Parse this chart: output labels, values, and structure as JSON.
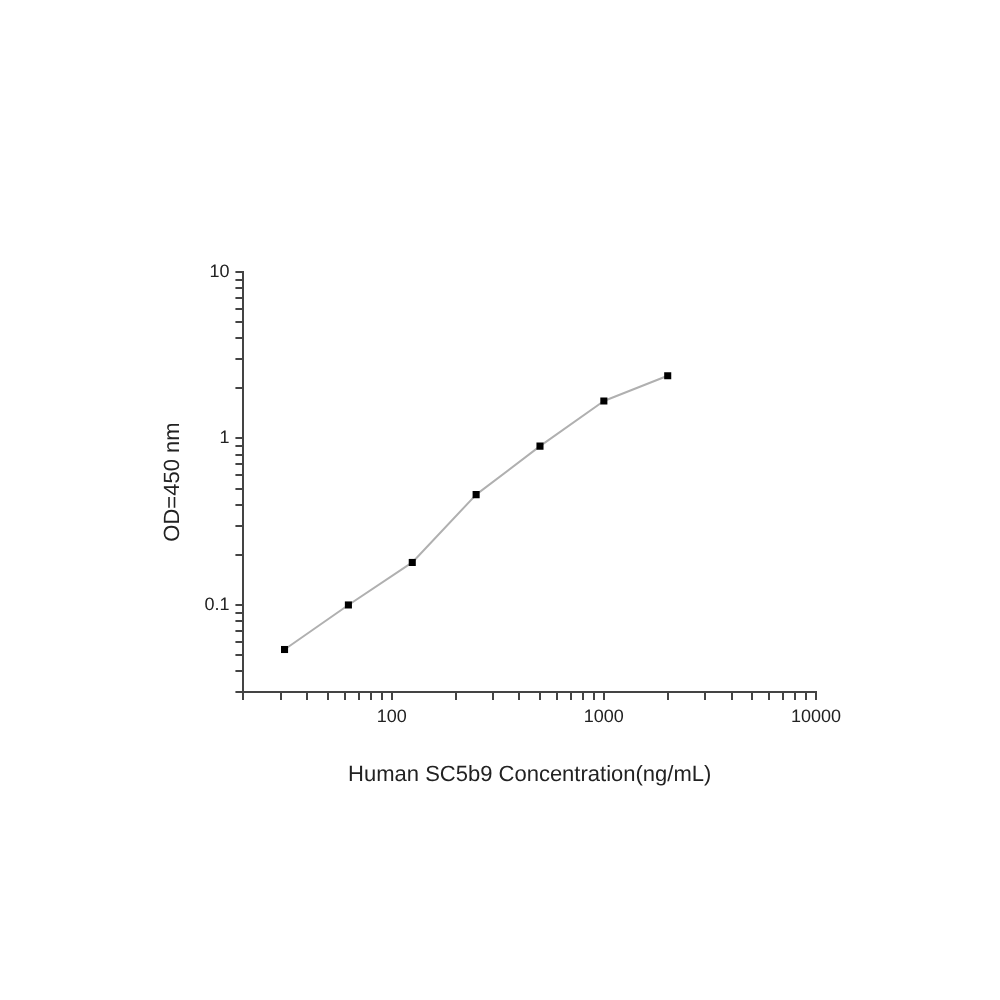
{
  "chart_data": {
    "type": "line",
    "xlabel": "Human SC5b9 Concentration(ng/mL)",
    "ylabel": "OD=450 nm",
    "x": [
      31.25,
      62.5,
      125,
      250,
      500,
      1000,
      2000
    ],
    "series": [
      {
        "color": "#b0b0b0",
        "values": [
          0.054,
          0.1,
          0.18,
          0.46,
          0.9,
          1.68,
          2.38
        ]
      }
    ],
    "log": "xy",
    "marker": "square",
    "grid": false,
    "legend": false,
    "xlim": [
      20,
      10000
    ],
    "xticks": [
      {
        "value": 20,
        "label": null
      },
      {
        "value": 30,
        "label": null
      },
      {
        "value": 40,
        "label": null
      },
      {
        "value": 50,
        "label": null
      },
      {
        "value": 60,
        "label": null
      },
      {
        "value": 70,
        "label": null
      },
      {
        "value": 80,
        "label": null
      },
      {
        "value": 90,
        "label": null
      },
      100,
      {
        "value": 200,
        "label": null
      },
      {
        "value": 300,
        "label": null
      },
      {
        "value": 400,
        "label": null
      },
      {
        "value": 500,
        "label": null
      },
      {
        "value": 600,
        "label": null
      },
      {
        "value": 700,
        "label": null
      },
      {
        "value": 800,
        "label": null
      },
      {
        "value": 900,
        "label": null
      },
      1000,
      {
        "value": 2000,
        "label": null
      },
      {
        "value": 3000,
        "label": null
      },
      {
        "value": 4000,
        "label": null
      },
      {
        "value": 5000,
        "label": null
      },
      {
        "value": 6000,
        "label": null
      },
      {
        "value": 7000,
        "label": null
      },
      {
        "value": 8000,
        "label": null
      },
      {
        "value": 9000,
        "label": null
      },
      10000
    ],
    "ylim": [
      0.03,
      10
    ],
    "yticks": [
      {
        "value": 0.03,
        "label": null
      },
      {
        "value": 0.04,
        "label": null
      },
      {
        "value": 0.05,
        "label": null
      },
      {
        "value": 0.06,
        "label": null
      },
      {
        "value": 0.07,
        "label": null
      },
      {
        "value": 0.08,
        "label": null
      },
      {
        "value": 0.09,
        "label": null
      },
      0.1,
      {
        "value": 0.2,
        "label": null
      },
      {
        "value": 0.3,
        "label": null
      },
      {
        "value": 0.4,
        "label": null
      },
      {
        "value": 0.5,
        "label": null
      },
      {
        "value": 0.6,
        "label": null
      },
      {
        "value": 0.7,
        "label": null
      },
      {
        "value": 0.8,
        "label": null
      },
      {
        "value": 0.9,
        "label": null
      },
      1,
      {
        "value": 2,
        "label": null
      },
      {
        "value": 3,
        "label": null
      },
      {
        "value": 4,
        "label": null
      },
      {
        "value": 5,
        "label": null
      },
      {
        "value": 6,
        "label": null
      },
      {
        "value": 7,
        "label": null
      },
      {
        "value": 8,
        "label": null
      },
      {
        "value": 9,
        "label": null
      },
      10
    ]
  }
}
